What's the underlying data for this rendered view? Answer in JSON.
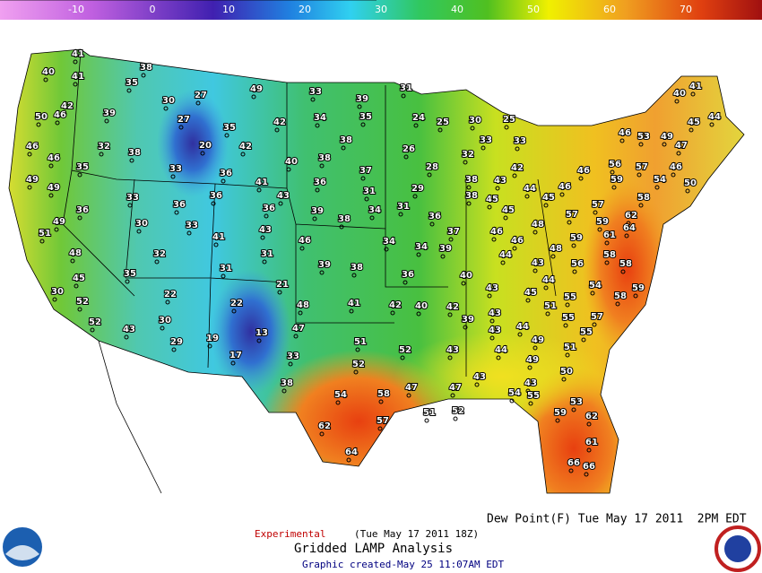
{
  "colorbar": {
    "ticks": [
      -10,
      0,
      10,
      20,
      30,
      40,
      50,
      60,
      70
    ]
  },
  "stations": [
    41,
    38,
    40,
    41,
    35,
    49,
    33,
    39,
    31,
    30,
    27,
    42,
    50,
    46,
    39,
    27,
    35,
    42,
    34,
    35,
    24,
    25,
    30,
    25,
    41,
    40,
    45,
    44,
    46,
    32,
    38,
    20,
    42,
    38,
    26,
    33,
    33,
    46,
    53,
    49,
    47,
    40,
    38,
    37,
    28,
    32,
    42,
    46,
    35,
    33,
    36,
    41,
    36,
    31,
    29,
    38,
    43,
    44,
    46,
    46,
    56,
    57,
    46,
    49,
    49,
    33,
    36,
    36,
    43,
    36,
    39,
    38,
    34,
    31,
    36,
    38,
    45,
    45,
    45,
    59,
    54,
    58,
    50,
    36,
    30,
    49,
    57,
    57,
    48,
    62,
    59,
    64,
    51,
    33,
    41,
    43,
    46,
    34,
    34,
    39,
    37,
    46,
    46,
    48,
    59,
    61,
    48,
    32,
    31,
    39,
    38,
    36,
    40,
    44,
    43,
    56,
    58,
    58,
    45,
    35,
    31,
    21,
    30,
    52,
    22,
    22,
    41,
    48,
    42,
    40,
    42,
    43,
    45,
    44,
    55,
    54,
    58,
    59,
    52,
    30,
    43,
    47,
    39,
    43,
    43,
    44,
    51,
    55,
    57,
    55,
    49,
    13,
    19,
    29,
    33,
    51,
    52,
    43,
    44,
    51,
    17,
    52,
    49,
    38,
    47,
    47,
    43,
    43,
    50,
    54,
    58,
    54,
    55,
    53,
    51,
    52,
    59,
    62,
    57,
    62,
    61,
    64,
    66,
    66
  ],
  "footer": {
    "experimental": "Experimental",
    "run_time": "(Tue May 17 2011 18Z)",
    "title": "Gridded LAMP Analysis",
    "created": "Graphic created-May 25 11:07AM EDT",
    "product": "Dew Point(F) Tue May 17 2011  2PM EDT"
  }
}
